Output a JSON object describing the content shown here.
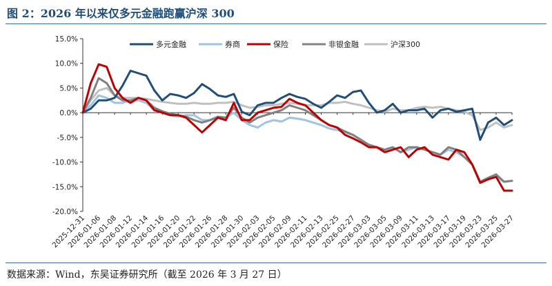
{
  "figure_title": "图 2：2026 年以来仅多元金融跑赢沪深 300",
  "source_note": "数据来源：Wind，东吴证券研究所（截至 2026 年 3 月 27 日）",
  "chart_data": {
    "type": "line",
    "title": "",
    "xlabel": "",
    "ylabel": "",
    "ylim": [
      -20,
      15
    ],
    "yticks": [
      15,
      10,
      5,
      0,
      -5,
      -10,
      -15,
      -20
    ],
    "ytick_labels": [
      "15.0%",
      "10.0%",
      "5.0%",
      "0.0%",
      "-5.0%",
      "-10.0%",
      "-15.0%",
      "-20.0%"
    ],
    "legend_position": "top",
    "grid": false,
    "x_tick_labels": [
      "2025-12-31",
      "2026-01-06",
      "2026-01-08",
      "2026-01-12",
      "2026-01-14",
      "2026-01-16",
      "2026-01-20",
      "2026-01-22",
      "2026-01-26",
      "2026-01-28",
      "2026-01-30",
      "2026-02-03",
      "2026-02-05",
      "2026-02-09",
      "2026-02-11",
      "2026-02-13",
      "2026-02-25",
      "2026-02-27",
      "2026-03-03",
      "2026-03-05",
      "2026-03-09",
      "2026-03-11",
      "2026-03-13",
      "2026-03-17",
      "2026-03-19",
      "2026-03-23",
      "2026-03-25",
      "2026-03-27"
    ],
    "x": [
      "2025-12-31",
      "2026-01-05",
      "2026-01-06",
      "2026-01-07",
      "2026-01-08",
      "2026-01-09",
      "2026-01-12",
      "2026-01-13",
      "2026-01-14",
      "2026-01-15",
      "2026-01-16",
      "2026-01-19",
      "2026-01-20",
      "2026-01-21",
      "2026-01-22",
      "2026-01-23",
      "2026-01-26",
      "2026-01-27",
      "2026-01-28",
      "2026-01-29",
      "2026-01-30",
      "2026-02-02",
      "2026-02-03",
      "2026-02-04",
      "2026-02-05",
      "2026-02-06",
      "2026-02-09",
      "2026-02-10",
      "2026-02-11",
      "2026-02-12",
      "2026-02-13",
      "2026-02-24",
      "2026-02-25",
      "2026-02-26",
      "2026-02-27",
      "2026-03-02",
      "2026-03-03",
      "2026-03-04",
      "2026-03-05",
      "2026-03-06",
      "2026-03-09",
      "2026-03-10",
      "2026-03-11",
      "2026-03-12",
      "2026-03-13",
      "2026-03-16",
      "2026-03-17",
      "2026-03-18",
      "2026-03-19",
      "2026-03-20",
      "2026-03-23",
      "2026-03-24",
      "2026-03-25",
      "2026-03-26",
      "2026-03-27"
    ],
    "series": [
      {
        "name": "多元金融",
        "color": "#1f4e79",
        "values": [
          0,
          0.8,
          2.5,
          2.5,
          3.0,
          5.5,
          8.5,
          8.0,
          7.5,
          4.5,
          2.5,
          3.8,
          3.5,
          3.0,
          4.0,
          5.8,
          4.8,
          3.5,
          3.2,
          3.8,
          0.2,
          -0.5,
          1.5,
          2.0,
          2.0,
          3.0,
          3.8,
          3.2,
          2.8,
          1.8,
          1.0,
          2.2,
          3.5,
          3.0,
          4.2,
          4.5,
          2.0,
          0,
          0.5,
          1.8,
          0,
          0.5,
          0.5,
          0.8,
          -1.0,
          0.5,
          0.8,
          0.2,
          0.5,
          0.8,
          -5.5,
          -2.0,
          -1.0,
          -2.5,
          -1.5
        ]
      },
      {
        "name": "券商",
        "color": "#9dc3e6",
        "values": [
          0,
          1.5,
          3.5,
          3.0,
          2.0,
          2.0,
          2.5,
          2.5,
          2.0,
          0.5,
          0,
          -0.5,
          -0.8,
          -0.5,
          -0.5,
          -1.5,
          -1.5,
          -1.0,
          -1.0,
          0,
          -1.5,
          -2.5,
          -3.0,
          -2.0,
          -1.5,
          -1.8,
          -1.0,
          -1.2,
          -1.5,
          -2.0,
          -2.5,
          -3.2,
          -3.5,
          -4.0,
          -4.5,
          -5.5,
          -6.5,
          -7.0,
          -7.5,
          -7.0,
          -8.0,
          -7.5,
          -7.0,
          -7.5,
          -8.0,
          -8.5,
          -7.5,
          -8.0,
          -9.0,
          -10.5,
          -14.0,
          -13.5,
          -13.0,
          -14.0,
          -13.8
        ]
      },
      {
        "name": "保险",
        "color": "#c00000",
        "values": [
          0,
          6.0,
          9.8,
          9.3,
          5.0,
          3.0,
          2.0,
          3.0,
          2.5,
          0.5,
          0,
          -0.5,
          -0.5,
          -1.0,
          -2.5,
          -4.0,
          -2.5,
          -1.0,
          -1.5,
          2.0,
          -1.5,
          -1.5,
          0,
          0.5,
          1.0,
          1.2,
          2.8,
          2.0,
          1.5,
          0,
          -1.5,
          -2.5,
          -3.0,
          -4.5,
          -5.2,
          -6.0,
          -7.0,
          -7.0,
          -8.0,
          -7.5,
          -7.0,
          -9.0,
          -7.5,
          -7.0,
          -8.5,
          -9.0,
          -9.5,
          -7.5,
          -8.0,
          -10.5,
          -14.2,
          -13.5,
          -13.0,
          -15.8,
          -15.8
        ]
      },
      {
        "name": "非银金融",
        "color": "#808080",
        "values": [
          0,
          3.0,
          7.0,
          6.0,
          3.5,
          2.5,
          2.5,
          3.0,
          2.5,
          1.0,
          0.3,
          -0.2,
          -0.5,
          -0.8,
          -1.5,
          -2.0,
          -1.5,
          -0.8,
          -1.0,
          1.0,
          -1.0,
          -2.0,
          -1.0,
          -0.5,
          0,
          0.5,
          1.5,
          1.0,
          0.5,
          -0.5,
          -1.5,
          -2.5,
          -3.0,
          -3.8,
          -4.5,
          -5.5,
          -6.5,
          -7.0,
          -7.5,
          -7.0,
          -8.0,
          -7.0,
          -7.0,
          -7.5,
          -8.0,
          -8.5,
          -7.0,
          -7.5,
          -9.0,
          -10.5,
          -14.0,
          -13.2,
          -12.5,
          -14.0,
          -13.8
        ]
      },
      {
        "name": "沪深300",
        "color": "#c0c0c0",
        "values": [
          0,
          2.5,
          4.5,
          5.0,
          3.5,
          3.0,
          3.0,
          3.0,
          2.8,
          2.5,
          2.2,
          2.0,
          1.8,
          1.8,
          2.0,
          1.8,
          1.8,
          2.0,
          2.0,
          2.2,
          1.5,
          1.0,
          1.2,
          1.5,
          1.5,
          1.8,
          2.0,
          1.8,
          1.5,
          1.5,
          1.5,
          2.0,
          2.0,
          2.2,
          1.8,
          1.5,
          1.0,
          0.5,
          0.2,
          0.8,
          0.5,
          0.5,
          1.0,
          1.2,
          1.0,
          1.2,
          0.8,
          0.5,
          0.2,
          -0.5,
          -3.5,
          -3.0,
          -2.0,
          -3.0,
          -2.5
        ]
      }
    ]
  }
}
